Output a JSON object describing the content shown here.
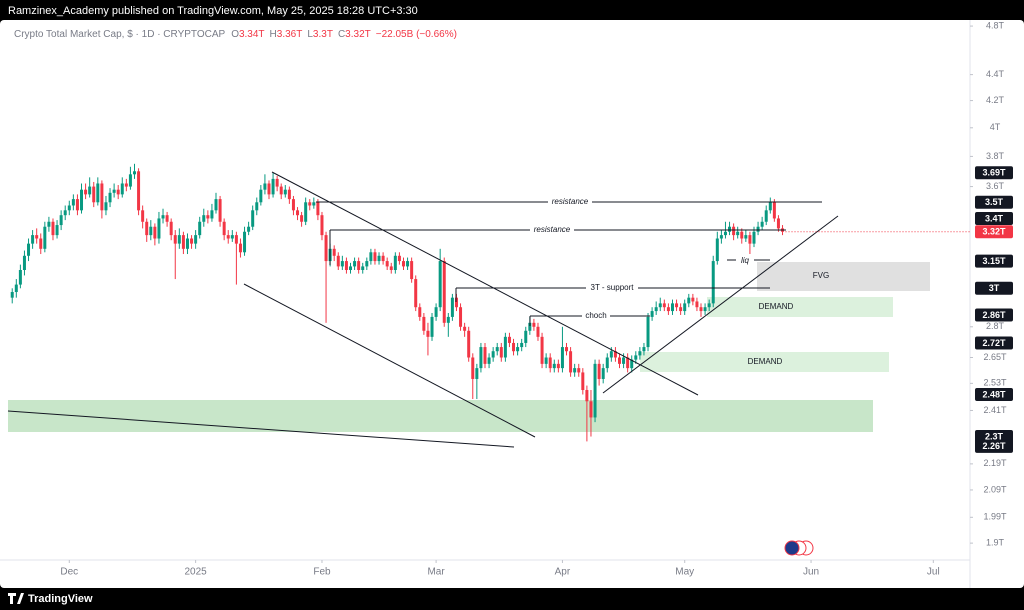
{
  "header": {
    "publisher": "Ramzinex_Academy published on TradingView.com, May 25, 2025 18:28 UTC+3:30"
  },
  "chart_data": {
    "type": "candlestick",
    "title": "Crypto Total Market Cap, $ · 1D · CRYPTOCAP",
    "legend_ohlc": [
      {
        "key": "O",
        "value": "3.34T"
      },
      {
        "key": "H",
        "value": "3.36T"
      },
      {
        "key": "L",
        "value": "3.3T"
      },
      {
        "key": "C",
        "value": "3.32T"
      }
    ],
    "change": "−22.05B (−0.66%)",
    "log_scale": true,
    "xlim": [
      -3,
      235
    ],
    "xticks": [
      {
        "value": 14,
        "label": "Dec"
      },
      {
        "value": 45,
        "label": "2025"
      },
      {
        "value": 76,
        "label": "Feb"
      },
      {
        "value": 104,
        "label": "Mar"
      },
      {
        "value": 135,
        "label": "Apr"
      },
      {
        "value": 165,
        "label": "May"
      },
      {
        "value": 196,
        "label": "Jun"
      },
      {
        "value": 226,
        "label": "Jul"
      }
    ],
    "ylim": [
      1.85,
      4.87
    ],
    "yticks": [
      {
        "value": 4.8,
        "label": "4.8T"
      },
      {
        "value": 4.4,
        "label": "4.4T"
      },
      {
        "value": 4.2,
        "label": "4.2T"
      },
      {
        "value": 4,
        "label": "4T"
      },
      {
        "value": 3.8,
        "label": "3.8T"
      },
      {
        "value": 3.6,
        "label": "3.6T"
      },
      {
        "value": 2.8,
        "label": "2.8T"
      },
      {
        "value": 2.65,
        "label": "2.65T"
      },
      {
        "value": 2.53,
        "label": "2.53T"
      },
      {
        "value": 2.41,
        "label": "2.41T"
      },
      {
        "value": 2.19,
        "label": "2.19T"
      },
      {
        "value": 2.09,
        "label": "2.09T"
      },
      {
        "value": 1.99,
        "label": "1.99T"
      },
      {
        "value": 1.9,
        "label": "1.9T"
      }
    ],
    "up_color": "#089981",
    "down_color": "#f23645",
    "ohlc": [
      [
        2.95,
        3.0,
        2.92,
        2.98
      ],
      [
        2.98,
        3.05,
        2.95,
        3.02
      ],
      [
        3.02,
        3.13,
        3.0,
        3.1
      ],
      [
        3.1,
        3.21,
        3.07,
        3.18
      ],
      [
        3.18,
        3.28,
        3.15,
        3.25
      ],
      [
        3.25,
        3.33,
        3.22,
        3.3
      ],
      [
        3.3,
        3.34,
        3.25,
        3.28
      ],
      [
        3.28,
        3.31,
        3.19,
        3.22
      ],
      [
        3.22,
        3.38,
        3.2,
        3.35
      ],
      [
        3.35,
        3.41,
        3.32,
        3.38
      ],
      [
        3.38,
        3.4,
        3.27,
        3.3
      ],
      [
        3.3,
        3.39,
        3.28,
        3.36
      ],
      [
        3.36,
        3.45,
        3.33,
        3.42
      ],
      [
        3.42,
        3.48,
        3.39,
        3.45
      ],
      [
        3.45,
        3.51,
        3.42,
        3.48
      ],
      [
        3.48,
        3.55,
        3.45,
        3.52
      ],
      [
        3.52,
        3.55,
        3.42,
        3.45
      ],
      [
        3.45,
        3.62,
        3.43,
        3.58
      ],
      [
        3.58,
        3.62,
        3.52,
        3.55
      ],
      [
        3.55,
        3.66,
        3.53,
        3.6
      ],
      [
        3.6,
        3.63,
        3.47,
        3.5
      ],
      [
        3.5,
        3.66,
        3.48,
        3.62
      ],
      [
        3.62,
        3.64,
        3.4,
        3.45
      ],
      [
        3.45,
        3.54,
        3.42,
        3.5
      ],
      [
        3.5,
        3.59,
        3.47,
        3.56
      ],
      [
        3.56,
        3.62,
        3.53,
        3.58
      ],
      [
        3.58,
        3.61,
        3.52,
        3.55
      ],
      [
        3.55,
        3.66,
        3.53,
        3.62
      ],
      [
        3.62,
        3.65,
        3.57,
        3.6
      ],
      [
        3.6,
        3.73,
        3.58,
        3.68
      ],
      [
        3.68,
        3.75,
        3.65,
        3.7
      ],
      [
        3.7,
        3.72,
        3.42,
        3.45
      ],
      [
        3.45,
        3.48,
        3.34,
        3.38
      ],
      [
        3.38,
        3.4,
        3.26,
        3.3
      ],
      [
        3.3,
        3.39,
        3.27,
        3.35
      ],
      [
        3.35,
        3.37,
        3.24,
        3.28
      ],
      [
        3.28,
        3.44,
        3.25,
        3.4
      ],
      [
        3.4,
        3.46,
        3.37,
        3.42
      ],
      [
        3.42,
        3.44,
        3.35,
        3.38
      ],
      [
        3.38,
        3.4,
        3.27,
        3.3
      ],
      [
        3.3,
        3.33,
        3.05,
        3.25
      ],
      [
        3.25,
        3.34,
        3.22,
        3.3
      ],
      [
        3.3,
        3.32,
        3.19,
        3.22
      ],
      [
        3.22,
        3.31,
        3.19,
        3.28
      ],
      [
        3.28,
        3.3,
        3.22,
        3.25
      ],
      [
        3.25,
        3.33,
        3.22,
        3.3
      ],
      [
        3.3,
        3.41,
        3.28,
        3.38
      ],
      [
        3.38,
        3.46,
        3.35,
        3.42
      ],
      [
        3.42,
        3.45,
        3.37,
        3.4
      ],
      [
        3.4,
        3.49,
        3.38,
        3.45
      ],
      [
        3.45,
        3.56,
        3.43,
        3.52
      ],
      [
        3.52,
        3.54,
        3.35,
        3.38
      ],
      [
        3.38,
        3.4,
        3.27,
        3.3
      ],
      [
        3.3,
        3.33,
        3.25,
        3.28
      ],
      [
        3.28,
        3.33,
        3.26,
        3.3
      ],
      [
        3.3,
        3.32,
        3.02,
        3.25
      ],
      [
        3.25,
        3.28,
        3.17,
        3.2
      ],
      [
        3.2,
        3.35,
        3.18,
        3.32
      ],
      [
        3.32,
        3.38,
        3.3,
        3.35
      ],
      [
        3.35,
        3.48,
        3.33,
        3.45
      ],
      [
        3.45,
        3.53,
        3.42,
        3.5
      ],
      [
        3.5,
        3.61,
        3.48,
        3.58
      ],
      [
        3.58,
        3.68,
        3.55,
        3.62
      ],
      [
        3.62,
        3.64,
        3.52,
        3.55
      ],
      [
        3.55,
        3.69,
        3.53,
        3.65
      ],
      [
        3.65,
        3.67,
        3.57,
        3.6
      ],
      [
        3.6,
        3.62,
        3.52,
        3.55
      ],
      [
        3.55,
        3.61,
        3.53,
        3.58
      ],
      [
        3.58,
        3.6,
        3.49,
        3.52
      ],
      [
        3.52,
        3.54,
        3.42,
        3.45
      ],
      [
        3.45,
        3.47,
        3.39,
        3.42
      ],
      [
        3.42,
        3.44,
        3.35,
        3.38
      ],
      [
        3.38,
        3.53,
        3.36,
        3.5
      ],
      [
        3.5,
        3.52,
        3.45,
        3.48
      ],
      [
        3.48,
        3.53,
        3.46,
        3.5
      ],
      [
        3.5,
        3.52,
        3.39,
        3.42
      ],
      [
        3.42,
        3.44,
        3.27,
        3.3
      ],
      [
        3.3,
        3.32,
        2.82,
        3.15
      ],
      [
        3.15,
        3.25,
        3.12,
        3.22
      ],
      [
        3.22,
        3.24,
        3.15,
        3.18
      ],
      [
        3.18,
        3.2,
        3.1,
        3.12
      ],
      [
        3.12,
        3.18,
        3.1,
        3.15
      ],
      [
        3.15,
        3.17,
        3.08,
        3.1
      ],
      [
        3.1,
        3.14,
        3.08,
        3.12
      ],
      [
        3.12,
        3.17,
        3.1,
        3.15
      ],
      [
        3.15,
        3.17,
        3.08,
        3.1
      ],
      [
        3.1,
        3.14,
        3.08,
        3.12
      ],
      [
        3.12,
        3.17,
        3.1,
        3.15
      ],
      [
        3.15,
        3.22,
        3.13,
        3.2
      ],
      [
        3.2,
        3.22,
        3.13,
        3.15
      ],
      [
        3.15,
        3.2,
        3.13,
        3.18
      ],
      [
        3.18,
        3.2,
        3.13,
        3.15
      ],
      [
        3.15,
        3.17,
        3.1,
        3.12
      ],
      [
        3.12,
        3.14,
        3.08,
        3.1
      ],
      [
        3.1,
        3.2,
        3.08,
        3.18
      ],
      [
        3.18,
        3.2,
        3.13,
        3.15
      ],
      [
        3.15,
        3.17,
        3.1,
        3.12
      ],
      [
        3.12,
        3.17,
        3.1,
        3.15
      ],
      [
        3.15,
        3.17,
        3.03,
        3.05
      ],
      [
        3.05,
        3.07,
        2.88,
        2.9
      ],
      [
        2.9,
        2.92,
        2.83,
        2.85
      ],
      [
        2.85,
        2.87,
        2.76,
        2.78
      ],
      [
        2.78,
        2.82,
        2.66,
        2.75
      ],
      [
        2.75,
        2.87,
        2.73,
        2.85
      ],
      [
        2.85,
        2.92,
        2.83,
        2.9
      ],
      [
        2.9,
        3.22,
        2.88,
        3.15
      ],
      [
        3.15,
        3.17,
        2.8,
        2.82
      ],
      [
        2.82,
        2.87,
        2.75,
        2.85
      ],
      [
        2.85,
        2.97,
        2.83,
        2.95
      ],
      [
        2.95,
        2.97,
        2.88,
        2.9
      ],
      [
        2.9,
        2.92,
        2.78,
        2.8
      ],
      [
        2.8,
        2.82,
        2.75,
        2.78
      ],
      [
        2.78,
        2.8,
        2.63,
        2.65
      ],
      [
        2.65,
        2.67,
        2.46,
        2.55
      ],
      [
        2.55,
        2.62,
        2.46,
        2.6
      ],
      [
        2.6,
        2.72,
        2.58,
        2.7
      ],
      [
        2.7,
        2.72,
        2.6,
        2.62
      ],
      [
        2.62,
        2.67,
        2.6,
        2.65
      ],
      [
        2.65,
        2.7,
        2.63,
        2.68
      ],
      [
        2.68,
        2.72,
        2.66,
        2.7
      ],
      [
        2.7,
        2.72,
        2.63,
        2.65
      ],
      [
        2.65,
        2.77,
        2.63,
        2.75
      ],
      [
        2.75,
        2.77,
        2.7,
        2.72
      ],
      [
        2.72,
        2.74,
        2.66,
        2.68
      ],
      [
        2.68,
        2.72,
        2.66,
        2.7
      ],
      [
        2.7,
        2.74,
        2.68,
        2.72
      ],
      [
        2.72,
        2.8,
        2.7,
        2.78
      ],
      [
        2.78,
        2.85,
        2.76,
        2.82
      ],
      [
        2.82,
        2.84,
        2.78,
        2.8
      ],
      [
        2.8,
        2.82,
        2.73,
        2.75
      ],
      [
        2.75,
        2.77,
        2.6,
        2.62
      ],
      [
        2.62,
        2.67,
        2.6,
        2.65
      ],
      [
        2.65,
        2.67,
        2.58,
        2.6
      ],
      [
        2.6,
        2.64,
        2.58,
        2.62
      ],
      [
        2.62,
        2.64,
        2.58,
        2.6
      ],
      [
        2.6,
        2.8,
        2.58,
        2.7
      ],
      [
        2.7,
        2.72,
        2.66,
        2.68
      ],
      [
        2.68,
        2.7,
        2.56,
        2.58
      ],
      [
        2.58,
        2.62,
        2.56,
        2.6
      ],
      [
        2.6,
        2.62,
        2.56,
        2.58
      ],
      [
        2.58,
        2.6,
        2.48,
        2.5
      ],
      [
        2.5,
        2.52,
        2.28,
        2.45
      ],
      [
        2.45,
        2.5,
        2.3,
        2.38
      ],
      [
        2.38,
        2.64,
        2.36,
        2.62
      ],
      [
        2.62,
        2.64,
        2.52,
        2.55
      ],
      [
        2.55,
        2.62,
        2.53,
        2.6
      ],
      [
        2.6,
        2.67,
        2.58,
        2.65
      ],
      [
        2.65,
        2.7,
        2.63,
        2.68
      ],
      [
        2.68,
        2.7,
        2.63,
        2.65
      ],
      [
        2.65,
        2.67,
        2.6,
        2.62
      ],
      [
        2.62,
        2.67,
        2.6,
        2.65
      ],
      [
        2.65,
        2.67,
        2.58,
        2.6
      ],
      [
        2.6,
        2.66,
        2.58,
        2.64
      ],
      [
        2.64,
        2.68,
        2.62,
        2.66
      ],
      [
        2.66,
        2.7,
        2.64,
        2.68
      ],
      [
        2.68,
        2.72,
        2.66,
        2.7
      ],
      [
        2.7,
        2.87,
        2.68,
        2.85
      ],
      [
        2.85,
        2.9,
        2.83,
        2.88
      ],
      [
        2.88,
        2.93,
        2.86,
        2.9
      ],
      [
        2.9,
        2.95,
        2.88,
        2.92
      ],
      [
        2.92,
        2.94,
        2.88,
        2.9
      ],
      [
        2.9,
        2.92,
        2.86,
        2.88
      ],
      [
        2.88,
        2.94,
        2.86,
        2.92
      ],
      [
        2.92,
        2.94,
        2.88,
        2.9
      ],
      [
        2.9,
        2.92,
        2.86,
        2.88
      ],
      [
        2.88,
        2.94,
        2.86,
        2.92
      ],
      [
        2.92,
        2.97,
        2.9,
        2.95
      ],
      [
        2.95,
        2.97,
        2.91,
        2.93
      ],
      [
        2.93,
        2.95,
        2.88,
        2.9
      ],
      [
        2.9,
        2.92,
        2.85,
        2.88
      ],
      [
        2.88,
        2.92,
        2.86,
        2.9
      ],
      [
        2.9,
        2.94,
        2.88,
        2.92
      ],
      [
        2.92,
        3.18,
        2.9,
        3.15
      ],
      [
        3.15,
        3.32,
        3.13,
        3.28
      ],
      [
        3.28,
        3.33,
        3.25,
        3.3
      ],
      [
        3.3,
        3.38,
        3.28,
        3.32
      ],
      [
        3.32,
        3.38,
        3.3,
        3.35
      ],
      [
        3.35,
        3.37,
        3.27,
        3.3
      ],
      [
        3.3,
        3.35,
        3.28,
        3.32
      ],
      [
        3.32,
        3.34,
        3.25,
        3.28
      ],
      [
        3.28,
        3.33,
        3.26,
        3.3
      ],
      [
        3.3,
        3.32,
        3.17,
        3.25
      ],
      [
        3.25,
        3.35,
        3.23,
        3.32
      ],
      [
        3.32,
        3.38,
        3.3,
        3.35
      ],
      [
        3.35,
        3.41,
        3.33,
        3.38
      ],
      [
        3.38,
        3.48,
        3.36,
        3.45
      ],
      [
        3.45,
        3.53,
        3.43,
        3.5
      ],
      [
        3.5,
        3.52,
        3.38,
        3.4
      ],
      [
        3.4,
        3.42,
        3.32,
        3.34
      ],
      [
        3.34,
        3.36,
        3.3,
        3.32
      ]
    ],
    "price_labels": [
      {
        "value": 3.69,
        "label": "3.69T"
      },
      {
        "value": 3.5,
        "label": "3.5T"
      },
      {
        "value": 3.4,
        "label": "3.4T"
      },
      {
        "value": 3.15,
        "label": "3.15T"
      },
      {
        "value": 3,
        "label": "3T"
      },
      {
        "value": 2.86,
        "label": "2.86T"
      },
      {
        "value": 2.72,
        "label": "2.72T"
      },
      {
        "value": 2.48,
        "label": "2.48T"
      },
      {
        "value": 2.3,
        "label": "2.3T"
      },
      {
        "value": 2.26,
        "label": "2.26T"
      }
    ],
    "last_price": {
      "value": 3.32,
      "label": "3.32T"
    },
    "annotations": [
      "resistance",
      "resistance",
      "3T - support",
      "choch",
      "liq",
      "FVG",
      "DEMAND",
      "DEMAND"
    ]
  },
  "footer": {
    "brand": "TradingView"
  }
}
